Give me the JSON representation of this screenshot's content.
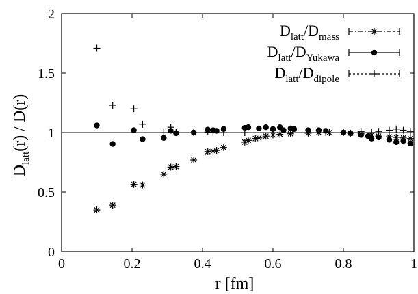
{
  "chart_data": {
    "type": "scatter",
    "xlabel": "r [fm]",
    "ylabel": {
      "main": "D",
      "sub": "latt",
      "rest": "(r) / D(r)"
    },
    "xlim": [
      0,
      1
    ],
    "ylim": [
      0,
      2
    ],
    "xticks": [
      "0",
      "0.2",
      "0.4",
      "0.6",
      "0.8",
      "1"
    ],
    "yticks": [
      "0",
      "0.5",
      "1",
      "1.5",
      "2"
    ],
    "reference_line": 1,
    "grid": false,
    "legend_position": "top-right",
    "series": [
      {
        "name": {
          "a": "D",
          "asub": "latt",
          "b": "/D",
          "bsub": "mass"
        },
        "marker": "asterisk",
        "line_style": "dash-dot",
        "points": [
          [
            0.1,
            0.35
          ],
          [
            0.145,
            0.39
          ],
          [
            0.205,
            0.565
          ],
          [
            0.23,
            0.56
          ],
          [
            0.29,
            0.65
          ],
          [
            0.31,
            0.71
          ],
          [
            0.325,
            0.715
          ],
          [
            0.375,
            0.77
          ],
          [
            0.415,
            0.84
          ],
          [
            0.43,
            0.845
          ],
          [
            0.44,
            0.85
          ],
          [
            0.46,
            0.875
          ],
          [
            0.52,
            0.92
          ],
          [
            0.53,
            0.935
          ],
          [
            0.55,
            0.95
          ],
          [
            0.56,
            0.955
          ],
          [
            0.58,
            0.97
          ],
          [
            0.6,
            0.98
          ],
          [
            0.62,
            0.985
          ],
          [
            0.65,
            0.99
          ],
          [
            0.7,
            0.995
          ],
          [
            0.73,
            1.0
          ],
          [
            0.76,
            1.0
          ],
          [
            0.8,
            1.0
          ],
          [
            0.82,
            0.995
          ],
          [
            0.85,
            0.99
          ],
          [
            0.88,
            0.98
          ],
          [
            0.9,
            0.97
          ],
          [
            0.93,
            0.965
          ],
          [
            0.95,
            0.96
          ],
          [
            0.97,
            0.955
          ],
          [
            0.99,
            0.95
          ]
        ]
      },
      {
        "name": {
          "a": "D",
          "asub": "latt",
          "b": "/D",
          "bsub": "Yukawa"
        },
        "marker": "circle",
        "line_style": "solid",
        "points": [
          [
            0.1,
            1.06
          ],
          [
            0.145,
            0.905
          ],
          [
            0.205,
            1.02
          ],
          [
            0.23,
            0.945
          ],
          [
            0.29,
            0.955
          ],
          [
            0.31,
            1.015
          ],
          [
            0.325,
            0.995
          ],
          [
            0.375,
            1.0
          ],
          [
            0.415,
            1.025
          ],
          [
            0.43,
            1.02
          ],
          [
            0.44,
            1.015
          ],
          [
            0.46,
            1.03
          ],
          [
            0.52,
            1.04
          ],
          [
            0.53,
            1.045
          ],
          [
            0.56,
            1.035
          ],
          [
            0.58,
            1.045
          ],
          [
            0.6,
            1.03
          ],
          [
            0.62,
            1.045
          ],
          [
            0.63,
            1.02
          ],
          [
            0.65,
            1.035
          ],
          [
            0.66,
            1.03
          ],
          [
            0.7,
            1.02
          ],
          [
            0.73,
            1.02
          ],
          [
            0.75,
            1.015
          ],
          [
            0.8,
            1.0
          ],
          [
            0.82,
            0.995
          ],
          [
            0.85,
            0.98
          ],
          [
            0.87,
            0.97
          ],
          [
            0.88,
            0.95
          ],
          [
            0.9,
            0.96
          ],
          [
            0.93,
            0.94
          ],
          [
            0.95,
            0.92
          ],
          [
            0.97,
            0.93
          ],
          [
            0.99,
            0.91
          ]
        ]
      },
      {
        "name": {
          "a": "D",
          "asub": "latt",
          "b": "/D",
          "bsub": "dipole"
        },
        "marker": "plus",
        "line_style": "dotted",
        "points": [
          [
            0.1,
            1.71
          ],
          [
            0.145,
            1.23
          ],
          [
            0.205,
            1.2
          ],
          [
            0.23,
            1.07
          ],
          [
            0.29,
            1.0
          ],
          [
            0.31,
            1.045
          ],
          [
            0.325,
            1.0
          ],
          [
            0.375,
            1.0
          ],
          [
            0.415,
            1.005
          ],
          [
            0.43,
            1.0
          ],
          [
            0.46,
            1.0
          ],
          [
            0.52,
            1.0
          ],
          [
            0.6,
            1.0
          ],
          [
            0.65,
            1.0
          ],
          [
            0.7,
            1.0
          ],
          [
            0.75,
            1.0
          ],
          [
            0.8,
            1.0
          ],
          [
            0.85,
            1.01
          ],
          [
            0.88,
            1.0
          ],
          [
            0.9,
            1.01
          ],
          [
            0.93,
            1.02
          ],
          [
            0.95,
            1.03
          ],
          [
            0.97,
            1.02
          ],
          [
            0.99,
            1.01
          ]
        ]
      }
    ]
  }
}
